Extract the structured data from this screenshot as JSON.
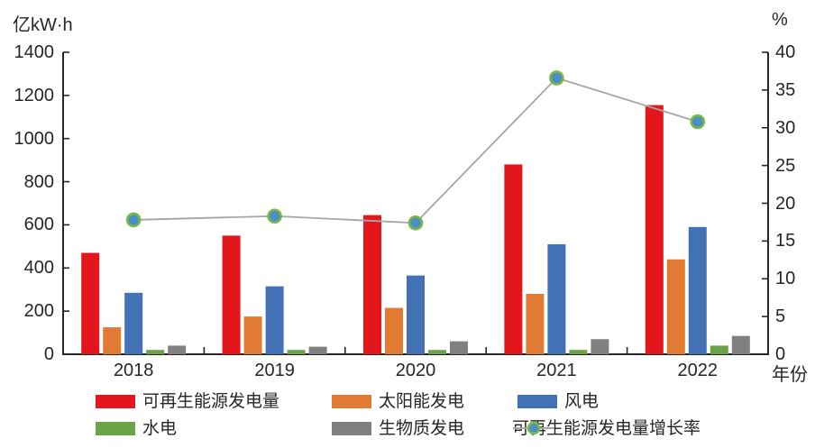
{
  "chart_data": {
    "type": "bar",
    "title": "",
    "categories": [
      "2018",
      "2019",
      "2020",
      "2021",
      "2022"
    ],
    "x_axis_label": "年份",
    "y_left": {
      "unit": "亿kW·h",
      "min": 0,
      "max": 1400,
      "step": 200,
      "ticks": [
        "0",
        "200",
        "400",
        "600",
        "800",
        "1000",
        "1200",
        "1400"
      ]
    },
    "y_right": {
      "unit": "%",
      "min": 0,
      "max": 40,
      "step": 5,
      "ticks": [
        "0",
        "5",
        "10",
        "15",
        "20",
        "25",
        "30",
        "35",
        "40"
      ]
    },
    "grid": false,
    "legend_position": "bottom",
    "series": [
      {
        "name": "可再生能源发电量",
        "type": "bar",
        "axis": "left",
        "color": "#e3161b",
        "values": [
          470,
          550,
          645,
          880,
          1155
        ]
      },
      {
        "name": "太阳能发电",
        "type": "bar",
        "axis": "left",
        "color": "#e17b33",
        "values": [
          125,
          175,
          215,
          280,
          440
        ]
      },
      {
        "name": "风电",
        "type": "bar",
        "axis": "left",
        "color": "#4271b5",
        "values": [
          285,
          315,
          365,
          510,
          590
        ]
      },
      {
        "name": "水电",
        "type": "bar",
        "axis": "left",
        "color": "#6ba348",
        "values": [
          20,
          20,
          20,
          20,
          40
        ]
      },
      {
        "name": "生物质发电",
        "type": "bar",
        "axis": "left",
        "color": "#808080",
        "values": [
          40,
          35,
          60,
          70,
          85
        ]
      },
      {
        "name": "可再生能源发电量增长率",
        "type": "line",
        "axis": "right",
        "color": "#a6a6a6",
        "marker_fill": "#4b90c4",
        "marker_stroke": "#7ab648",
        "values": [
          17.8,
          18.3,
          17.4,
          36.6,
          30.8
        ]
      }
    ],
    "axis_color": "#262626"
  }
}
